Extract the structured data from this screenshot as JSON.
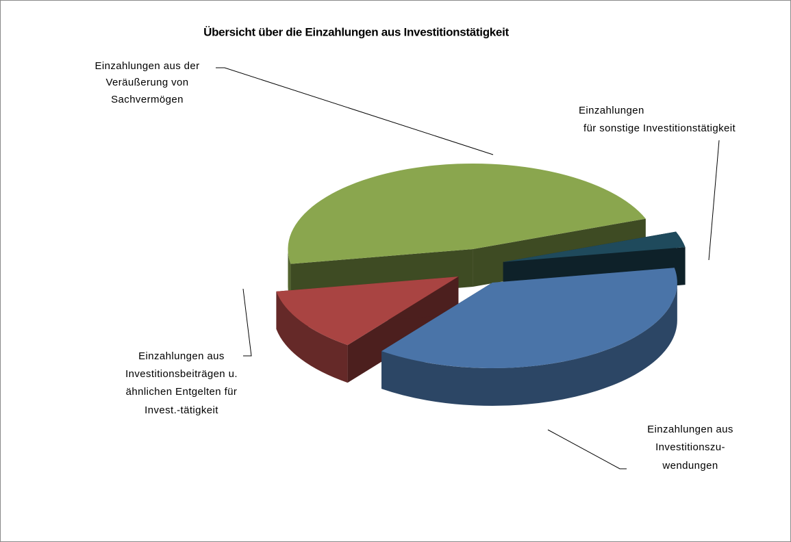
{
  "chart_data": {
    "type": "pie3d",
    "title": "Übersicht über die Einzahlungen aus Investitionstätigkeit",
    "categories": [
      [
        "Einzahlungen aus der",
        "Veräußerung von",
        "Sachvermögen"
      ],
      [
        "Einzahlungen",
        "für sonstige Investitionstätigkeit"
      ],
      [
        "Einzahlungen aus",
        "Investitionszu-",
        "wendungen"
      ],
      [
        "Einzahlungen aus",
        "Investitionsbeiträgen u.",
        "ähnlichen Entgelten für",
        "Invest.-tätigkeit"
      ]
    ],
    "values": [
      47,
      3,
      38,
      12
    ],
    "colors": [
      "#8aa64e",
      "#1f4a5c",
      "#4a74a8",
      "#a94442"
    ]
  }
}
